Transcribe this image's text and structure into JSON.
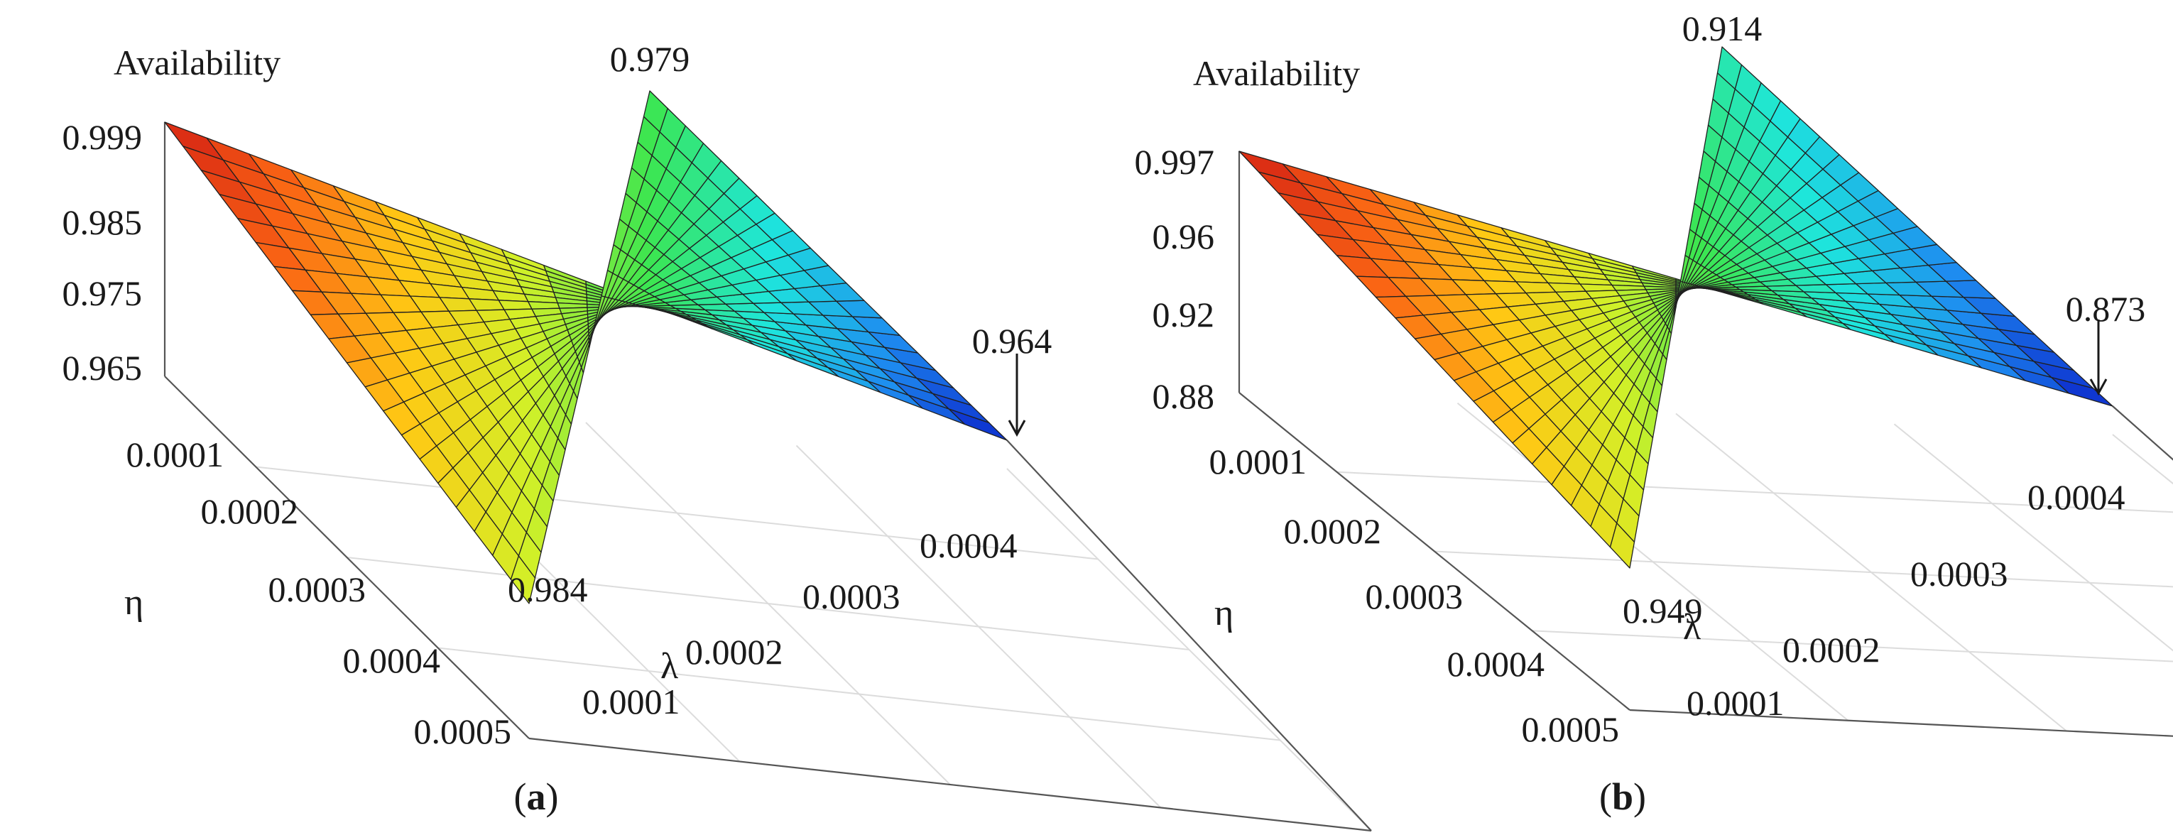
{
  "chart_data": [
    {
      "type": "surface",
      "panel": "a",
      "caption": {
        "open": "(",
        "letter": "a",
        "close": ")"
      },
      "zlabel": "Availability",
      "xlabel": "λ",
      "ylabel": "η",
      "x_ticks": [
        "0.0001",
        "0.0002",
        "0.0003",
        "0.0004"
      ],
      "y_ticks": [
        "0.0001",
        "0.0002",
        "0.0003",
        "0.0004",
        "0.0005"
      ],
      "z_ticks": [
        "0.999",
        "0.985",
        "0.975",
        "0.965"
      ],
      "xlim": [
        0.0001,
        0.0005
      ],
      "ylim": [
        0.0001,
        0.0005
      ],
      "zlim": [
        0.964,
        0.999
      ],
      "grid_size": 20,
      "corner_values": {
        "low_lambda_low_eta": 0.999,
        "high_lambda_low_eta": 0.964,
        "low_lambda_high_eta": 0.984,
        "high_lambda_high_eta": 0.979
      },
      "annotations": {
        "low_lambda_low_eta": "0.999",
        "high_lambda_low_eta": "0.964",
        "low_lambda_high_eta": "0.984",
        "high_lambda_high_eta": "0.979"
      },
      "colormap": [
        "#0a1ec8",
        "#1e8cf0",
        "#1ee6dc",
        "#3ce650",
        "#d2f028",
        "#ffc814",
        "#fa6414",
        "#d21e14"
      ]
    },
    {
      "type": "surface",
      "panel": "b",
      "caption": {
        "open": "(",
        "letter": "b",
        "close": ")"
      },
      "zlabel": "Availability",
      "xlabel": "λ",
      "ylabel": "η",
      "x_ticks": [
        "0.0001",
        "0.0002",
        "0.0003",
        "0.0004"
      ],
      "y_ticks": [
        "0.0001",
        "0.0002",
        "0.0003",
        "0.0004",
        "0.0005"
      ],
      "z_ticks": [
        "0.997",
        "0.96",
        "0.92",
        "0.88"
      ],
      "xlim": [
        0.0001,
        0.0005
      ],
      "ylim": [
        0.0001,
        0.0005
      ],
      "zlim": [
        0.873,
        0.997
      ],
      "grid_size": 20,
      "corner_values": {
        "low_lambda_low_eta": 0.997,
        "high_lambda_low_eta": 0.873,
        "low_lambda_high_eta": 0.949,
        "high_lambda_high_eta": 0.914
      },
      "annotations": {
        "low_lambda_low_eta": "0.997",
        "high_lambda_low_eta": "0.873",
        "low_lambda_high_eta": "0.949",
        "high_lambda_high_eta": "0.914"
      },
      "colormap": [
        "#0a1ec8",
        "#1e8cf0",
        "#1ee6dc",
        "#3ce650",
        "#d2f028",
        "#ffc814",
        "#fa6414",
        "#d21e14"
      ]
    }
  ]
}
